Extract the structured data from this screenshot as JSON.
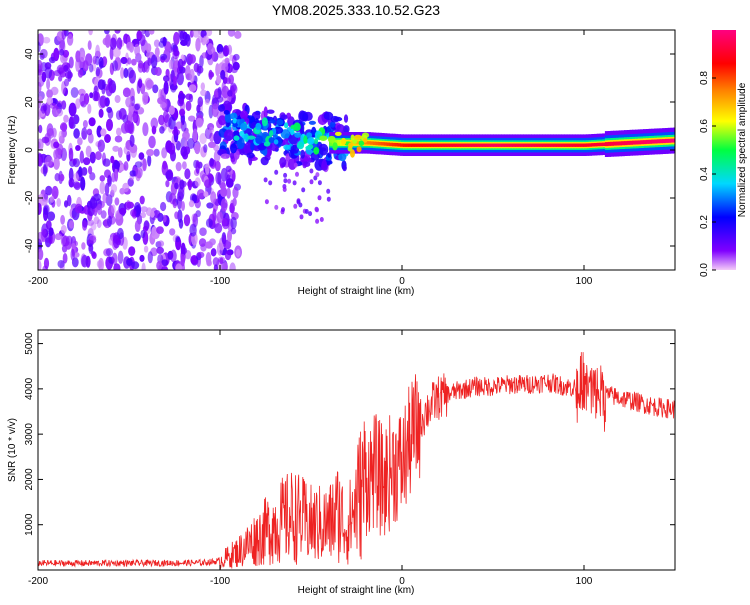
{
  "chart_data": [
    {
      "type": "heatmap",
      "title": "YM08.2025.333.10.52.G23",
      "xlabel": "Height of straight line (km)",
      "ylabel": "Frequency (Hz)",
      "xlim": [
        -200,
        150
      ],
      "ylim": [
        -50,
        50
      ],
      "x_ticks": [
        -200,
        -100,
        0,
        100
      ],
      "y_ticks": [
        -40,
        -20,
        0,
        20,
        40
      ],
      "colorbar": {
        "label": "Normalized spectral amplitude",
        "range": [
          0,
          1
        ],
        "ticks": [
          0,
          0.2,
          0.4,
          0.6,
          0.8
        ],
        "colormap": [
          "#f4ccf8",
          "#8000ff",
          "#0000ff",
          "#00d8ff",
          "#00ff40",
          "#ffff00",
          "#ff8000",
          "#ff0000",
          "#ff0080"
        ]
      },
      "ridge": {
        "description_points": [
          {
            "x": -95,
            "y": 10,
            "amp": 0.35
          },
          {
            "x": -80,
            "y": 8,
            "amp": 0.4
          },
          {
            "x": -60,
            "y": 6,
            "amp": 0.45
          },
          {
            "x": -40,
            "y": 3,
            "amp": 0.55
          },
          {
            "x": -20,
            "y": 3,
            "amp": 0.75
          },
          {
            "x": 0,
            "y": 2,
            "amp": 0.85
          },
          {
            "x": 50,
            "y": 2,
            "amp": 0.95
          },
          {
            "x": 100,
            "y": 2,
            "amp": 0.9
          },
          {
            "x": 150,
            "y": 4,
            "amp": 1.0
          }
        ]
      }
    },
    {
      "type": "line",
      "title": "",
      "xlabel": "Height of straight line (km)",
      "ylabel": "SNR (10 * v/v)",
      "xlim": [
        -200,
        150
      ],
      "ylim": [
        0,
        5300
      ],
      "x_ticks": [
        -200,
        -100,
        0,
        100
      ],
      "y_ticks": [
        1000,
        2000,
        3000,
        4000,
        5000
      ],
      "color": "#ee2222",
      "series": [
        {
          "name": "SNR",
          "x": [
            -200,
            -150,
            -110,
            -100,
            -90,
            -80,
            -70,
            -60,
            -50,
            -40,
            -35,
            -30,
            -25,
            -20,
            -15,
            -10,
            -5,
            0,
            5,
            10,
            15,
            20,
            30,
            40,
            50,
            60,
            70,
            80,
            90,
            100,
            105,
            110,
            120,
            130,
            140,
            150
          ],
          "y": [
            150,
            150,
            160,
            200,
            400,
            700,
            1000,
            1200,
            1000,
            1000,
            1300,
            900,
            1500,
            2000,
            2200,
            1900,
            2300,
            2300,
            2900,
            3300,
            3600,
            3800,
            3950,
            4050,
            4050,
            4100,
            4100,
            4150,
            4050,
            4000,
            3950,
            3900,
            3800,
            3700,
            3600,
            3550
          ]
        }
      ]
    }
  ]
}
